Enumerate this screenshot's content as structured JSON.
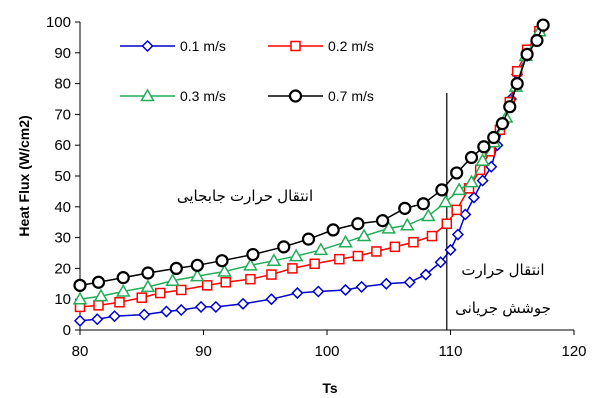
{
  "chart_data": {
    "type": "line",
    "title": "",
    "xlabel": "Ts",
    "ylabel": "Heat Flux (W/cm2)",
    "xlim": [
      80,
      120
    ],
    "ylim": [
      0,
      100
    ],
    "x_ticks": [
      "80",
      "90",
      "100",
      "110",
      "120"
    ],
    "y_ticks": [
      "0",
      "10",
      "20",
      "30",
      "40",
      "50",
      "60",
      "70",
      "80",
      "90",
      "100"
    ],
    "grid": false,
    "legend_position": "top-left",
    "vertical_line_x": 109.7,
    "annotations": [
      "انتقال حرارت جابجایی",
      "انتقال حرارت",
      "جوشش جریانی"
    ],
    "series": [
      {
        "name": "0.1 m/s",
        "color": "#0000cc",
        "marker": "diamond",
        "x": [
          80.0,
          81.4,
          82.8,
          85.2,
          87.0,
          88.2,
          89.8,
          91.0,
          93.2,
          95.5,
          97.6,
          99.3,
          101.5,
          102.8,
          104.8,
          106.7,
          108.0,
          109.2,
          110.0,
          110.6,
          111.2,
          111.9,
          112.6,
          113.3,
          113.8,
          114.3,
          114.9,
          115.4,
          116.2,
          117.2
        ],
        "y": [
          3,
          3.5,
          4.5,
          5,
          6,
          6.5,
          7.5,
          7.5,
          8.5,
          10,
          12,
          12.5,
          13,
          14,
          15,
          15.5,
          18,
          22,
          26,
          31,
          37.5,
          43,
          48.5,
          53,
          60,
          67,
          75,
          83,
          89,
          97
        ]
      },
      {
        "name": "0.2 m/s",
        "color": "#ff0000",
        "marker": "square",
        "x": [
          80.0,
          81.5,
          83.2,
          85.0,
          86.5,
          88.2,
          90.3,
          91.8,
          93.8,
          95.5,
          97.2,
          99.0,
          101.0,
          102.5,
          104.0,
          105.5,
          107.0,
          108.5,
          109.7,
          110.5,
          111.5,
          112.4,
          113.2,
          114.0,
          114.8,
          115.4,
          116.2,
          117.2
        ],
        "y": [
          7.5,
          8,
          9,
          10.5,
          12,
          13,
          14.5,
          15.5,
          16.5,
          18,
          20,
          21.5,
          23,
          24,
          25.5,
          27,
          28.5,
          30.5,
          34.5,
          39,
          46,
          52,
          58,
          65,
          74,
          84,
          91,
          97
        ]
      },
      {
        "name": "0.3 m/s",
        "color": "#21ad57",
        "marker": "triangle",
        "x": [
          80.0,
          81.7,
          83.5,
          85.5,
          87.5,
          89.5,
          91.7,
          93.8,
          95.7,
          97.5,
          99.5,
          101.5,
          103.0,
          105.0,
          106.5,
          108.2,
          109.6,
          110.7,
          111.7,
          112.6,
          113.5,
          114.5,
          115.3,
          116.1,
          117.2
        ],
        "y": [
          10,
          11,
          12.5,
          14,
          16,
          17.5,
          19,
          21,
          22.5,
          24,
          26,
          28.5,
          30.5,
          33,
          34,
          37,
          41.5,
          45.5,
          48,
          55,
          61,
          69,
          79,
          89,
          97
        ]
      },
      {
        "name": "0.7 m/s",
        "color": "#000000",
        "marker": "circle",
        "x": [
          80.0,
          81.5,
          83.5,
          85.5,
          87.8,
          89.5,
          91.5,
          94.0,
          96.5,
          98.5,
          100.5,
          102.5,
          104.5,
          106.3,
          107.8,
          109.3,
          110.5,
          111.7,
          112.7,
          113.5,
          114.2,
          114.8,
          115.4,
          116.2,
          117.0,
          117.5
        ],
        "y": [
          14.5,
          15.5,
          17,
          18.5,
          20,
          21,
          22.5,
          24.5,
          27,
          29.5,
          32.5,
          34.5,
          35.5,
          39.5,
          41,
          45.5,
          51,
          56,
          59.5,
          62.5,
          67,
          72.5,
          80,
          89.5,
          94,
          99
        ]
      }
    ]
  }
}
